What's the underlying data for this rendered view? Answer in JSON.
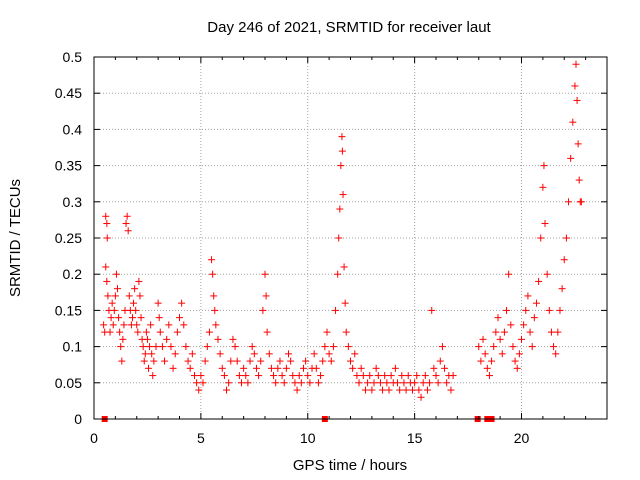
{
  "chart_data": {
    "type": "scatter",
    "title": "Day 246 of 2021, SRMTID for receiver laut",
    "xlabel": "GPS time / hours",
    "ylabel": "SRMTID / TECUs",
    "xlim": [
      0,
      24
    ],
    "ylim": [
      0,
      0.5
    ],
    "x_ticks": [
      0,
      5,
      10,
      15,
      20
    ],
    "x_tick_labels": [
      "0",
      "5",
      "10",
      "15",
      "20"
    ],
    "y_ticks": [
      0,
      0.05,
      0.1,
      0.15,
      0.2,
      0.25,
      0.3,
      0.35,
      0.4,
      0.45,
      0.5
    ],
    "y_tick_labels": [
      "0",
      "0.05",
      "0.1",
      "0.15",
      "0.2",
      "0.25",
      "0.3",
      "0.35",
      "0.4",
      "0.45",
      "0.5"
    ],
    "grid": true,
    "marker": "plus",
    "colors": {
      "series": "#ff0000",
      "grid": "#a0a0a0",
      "axis": "#000000"
    },
    "series": [
      {
        "marker": "plus",
        "points": [
          [
            0.45,
            0.13
          ],
          [
            0.5,
            0.12
          ],
          [
            0.55,
            0.28
          ],
          [
            0.6,
            0.27
          ],
          [
            0.62,
            0.25
          ],
          [
            0.55,
            0.21
          ],
          [
            0.6,
            0.19
          ],
          [
            0.65,
            0.17
          ],
          [
            0.7,
            0.15
          ],
          [
            0.75,
            0.12
          ],
          [
            0.8,
            0.14
          ],
          [
            0.85,
            0.16
          ],
          [
            0.9,
            0.13
          ],
          [
            0.95,
            0.15
          ],
          [
            1.0,
            0.17
          ],
          [
            1.05,
            0.2
          ],
          [
            1.1,
            0.18
          ],
          [
            1.15,
            0.14
          ],
          [
            1.2,
            0.12
          ],
          [
            1.25,
            0.1
          ],
          [
            1.3,
            0.08
          ],
          [
            1.35,
            0.11
          ],
          [
            1.4,
            0.13
          ],
          [
            1.45,
            0.15
          ],
          [
            1.5,
            0.27
          ],
          [
            1.55,
            0.28
          ],
          [
            1.6,
            0.26
          ],
          [
            1.65,
            0.17
          ],
          [
            1.7,
            0.15
          ],
          [
            1.75,
            0.13
          ],
          [
            1.8,
            0.14
          ],
          [
            1.85,
            0.16
          ],
          [
            1.9,
            0.18
          ],
          [
            1.95,
            0.15
          ],
          [
            2.0,
            0.13
          ],
          [
            2.05,
            0.12
          ],
          [
            2.1,
            0.19
          ],
          [
            2.15,
            0.17
          ],
          [
            2.2,
            0.14
          ],
          [
            2.25,
            0.11
          ],
          [
            2.3,
            0.1
          ],
          [
            2.35,
            0.08
          ],
          [
            2.4,
            0.09
          ],
          [
            2.45,
            0.12
          ],
          [
            2.5,
            0.11
          ],
          [
            2.55,
            0.07
          ],
          [
            2.6,
            0.1
          ],
          [
            2.65,
            0.13
          ],
          [
            2.7,
            0.09
          ],
          [
            2.75,
            0.06
          ],
          [
            2.8,
            0.08
          ],
          [
            2.9,
            0.1
          ],
          [
            3.0,
            0.16
          ],
          [
            3.05,
            0.14
          ],
          [
            3.1,
            0.12
          ],
          [
            3.2,
            0.1
          ],
          [
            3.3,
            0.08
          ],
          [
            3.4,
            0.11
          ],
          [
            3.5,
            0.13
          ],
          [
            3.6,
            0.1
          ],
          [
            3.7,
            0.07
          ],
          [
            3.8,
            0.09
          ],
          [
            3.9,
            0.12
          ],
          [
            4.0,
            0.14
          ],
          [
            4.1,
            0.16
          ],
          [
            4.2,
            0.13
          ],
          [
            4.3,
            0.1
          ],
          [
            4.4,
            0.08
          ],
          [
            4.5,
            0.07
          ],
          [
            4.6,
            0.09
          ],
          [
            4.7,
            0.06
          ],
          [
            4.8,
            0.05
          ],
          [
            4.9,
            0.04
          ],
          [
            5.0,
            0.06
          ],
          [
            5.1,
            0.05
          ],
          [
            5.2,
            0.08
          ],
          [
            5.3,
            0.1
          ],
          [
            5.4,
            0.12
          ],
          [
            5.5,
            0.22
          ],
          [
            5.55,
            0.2
          ],
          [
            5.6,
            0.17
          ],
          [
            5.65,
            0.15
          ],
          [
            5.7,
            0.13
          ],
          [
            5.8,
            0.11
          ],
          [
            5.9,
            0.09
          ],
          [
            6.0,
            0.07
          ],
          [
            6.1,
            0.06
          ],
          [
            6.2,
            0.04
          ],
          [
            6.3,
            0.05
          ],
          [
            6.4,
            0.08
          ],
          [
            6.5,
            0.11
          ],
          [
            6.6,
            0.1
          ],
          [
            6.7,
            0.08
          ],
          [
            6.8,
            0.06
          ],
          [
            6.9,
            0.05
          ],
          [
            7.0,
            0.07
          ],
          [
            7.1,
            0.06
          ],
          [
            7.2,
            0.05
          ],
          [
            7.3,
            0.08
          ],
          [
            7.4,
            0.1
          ],
          [
            7.5,
            0.09
          ],
          [
            7.6,
            0.07
          ],
          [
            7.7,
            0.06
          ],
          [
            7.8,
            0.08
          ],
          [
            7.9,
            0.15
          ],
          [
            8.0,
            0.2
          ],
          [
            8.05,
            0.17
          ],
          [
            8.1,
            0.12
          ],
          [
            8.2,
            0.09
          ],
          [
            8.3,
            0.07
          ],
          [
            8.4,
            0.06
          ],
          [
            8.5,
            0.05
          ],
          [
            8.6,
            0.07
          ],
          [
            8.7,
            0.08
          ],
          [
            8.8,
            0.06
          ],
          [
            8.9,
            0.05
          ],
          [
            9.0,
            0.07
          ],
          [
            9.1,
            0.09
          ],
          [
            9.2,
            0.08
          ],
          [
            9.3,
            0.06
          ],
          [
            9.4,
            0.05
          ],
          [
            9.5,
            0.04
          ],
          [
            9.6,
            0.06
          ],
          [
            9.7,
            0.05
          ],
          [
            9.8,
            0.07
          ],
          [
            9.9,
            0.08
          ],
          [
            10.0,
            0.06
          ],
          [
            10.1,
            0.05
          ],
          [
            10.2,
            0.07
          ],
          [
            10.3,
            0.09
          ],
          [
            10.4,
            0.07
          ],
          [
            10.5,
            0.05
          ],
          [
            10.6,
            0.06
          ],
          [
            10.7,
            0.08
          ],
          [
            10.8,
            0.1
          ],
          [
            10.9,
            0.12
          ],
          [
            11.0,
            0.09
          ],
          [
            11.1,
            0.08
          ],
          [
            11.2,
            0.1
          ],
          [
            11.3,
            0.15
          ],
          [
            11.4,
            0.2
          ],
          [
            11.45,
            0.25
          ],
          [
            11.5,
            0.29
          ],
          [
            11.55,
            0.35
          ],
          [
            11.6,
            0.39
          ],
          [
            11.62,
            0.37
          ],
          [
            11.65,
            0.31
          ],
          [
            11.7,
            0.21
          ],
          [
            11.75,
            0.16
          ],
          [
            11.8,
            0.12
          ],
          [
            11.9,
            0.1
          ],
          [
            12.0,
            0.08
          ],
          [
            12.1,
            0.07
          ],
          [
            12.2,
            0.09
          ],
          [
            12.3,
            0.06
          ],
          [
            12.4,
            0.05
          ],
          [
            12.5,
            0.07
          ],
          [
            12.6,
            0.06
          ],
          [
            12.7,
            0.04
          ],
          [
            12.8,
            0.05
          ],
          [
            12.9,
            0.06
          ],
          [
            13.0,
            0.04
          ],
          [
            13.1,
            0.05
          ],
          [
            13.2,
            0.07
          ],
          [
            13.3,
            0.06
          ],
          [
            13.4,
            0.05
          ],
          [
            13.5,
            0.04
          ],
          [
            13.6,
            0.06
          ],
          [
            13.7,
            0.05
          ],
          [
            13.8,
            0.04
          ],
          [
            13.9,
            0.06
          ],
          [
            14.0,
            0.05
          ],
          [
            14.1,
            0.07
          ],
          [
            14.2,
            0.05
          ],
          [
            14.3,
            0.04
          ],
          [
            14.4,
            0.06
          ],
          [
            14.5,
            0.05
          ],
          [
            14.6,
            0.04
          ],
          [
            14.7,
            0.06
          ],
          [
            14.8,
            0.05
          ],
          [
            14.9,
            0.04
          ],
          [
            15.0,
            0.05
          ],
          [
            15.1,
            0.06
          ],
          [
            15.2,
            0.04
          ],
          [
            15.3,
            0.03
          ],
          [
            15.4,
            0.05
          ],
          [
            15.5,
            0.06
          ],
          [
            15.6,
            0.04
          ],
          [
            15.7,
            0.05
          ],
          [
            15.8,
            0.15
          ],
          [
            15.9,
            0.07
          ],
          [
            16.0,
            0.06
          ],
          [
            16.1,
            0.05
          ],
          [
            16.2,
            0.08
          ],
          [
            16.3,
            0.1
          ],
          [
            16.4,
            0.07
          ],
          [
            16.5,
            0.05
          ],
          [
            16.6,
            0.06
          ],
          [
            16.7,
            0.04
          ],
          [
            16.8,
            0.06
          ],
          [
            18.0,
            0.1
          ],
          [
            18.1,
            0.08
          ],
          [
            18.2,
            0.11
          ],
          [
            18.3,
            0.09
          ],
          [
            18.4,
            0.07
          ],
          [
            18.5,
            0.06
          ],
          [
            18.6,
            0.08
          ],
          [
            18.7,
            0.1
          ],
          [
            18.8,
            0.12
          ],
          [
            18.9,
            0.14
          ],
          [
            19.0,
            0.11
          ],
          [
            19.1,
            0.09
          ],
          [
            19.2,
            0.12
          ],
          [
            19.3,
            0.15
          ],
          [
            19.4,
            0.2
          ],
          [
            19.5,
            0.13
          ],
          [
            19.6,
            0.1
          ],
          [
            19.7,
            0.08
          ],
          [
            19.8,
            0.07
          ],
          [
            19.9,
            0.09
          ],
          [
            20.0,
            0.11
          ],
          [
            20.1,
            0.13
          ],
          [
            20.2,
            0.15
          ],
          [
            20.3,
            0.17
          ],
          [
            20.4,
            0.12
          ],
          [
            20.5,
            0.1
          ],
          [
            20.6,
            0.14
          ],
          [
            20.7,
            0.16
          ],
          [
            20.8,
            0.19
          ],
          [
            20.9,
            0.25
          ],
          [
            21.0,
            0.32
          ],
          [
            21.05,
            0.35
          ],
          [
            21.1,
            0.27
          ],
          [
            21.2,
            0.2
          ],
          [
            21.3,
            0.15
          ],
          [
            21.4,
            0.12
          ],
          [
            21.5,
            0.1
          ],
          [
            21.6,
            0.09
          ],
          [
            21.7,
            0.12
          ],
          [
            21.8,
            0.15
          ],
          [
            21.9,
            0.18
          ],
          [
            22.0,
            0.22
          ],
          [
            22.1,
            0.25
          ],
          [
            22.2,
            0.3
          ],
          [
            22.3,
            0.36
          ],
          [
            22.4,
            0.41
          ],
          [
            22.5,
            0.46
          ],
          [
            22.55,
            0.49
          ],
          [
            22.6,
            0.44
          ],
          [
            22.65,
            0.38
          ],
          [
            22.7,
            0.33
          ],
          [
            22.75,
            0.3
          ],
          [
            22.8,
            0.3
          ]
        ]
      },
      {
        "marker": "square",
        "points": [
          [
            0.5,
            0.0
          ],
          [
            10.8,
            0.0
          ],
          [
            17.95,
            0.0
          ],
          [
            18.4,
            0.0
          ],
          [
            18.6,
            0.0
          ]
        ]
      }
    ]
  }
}
